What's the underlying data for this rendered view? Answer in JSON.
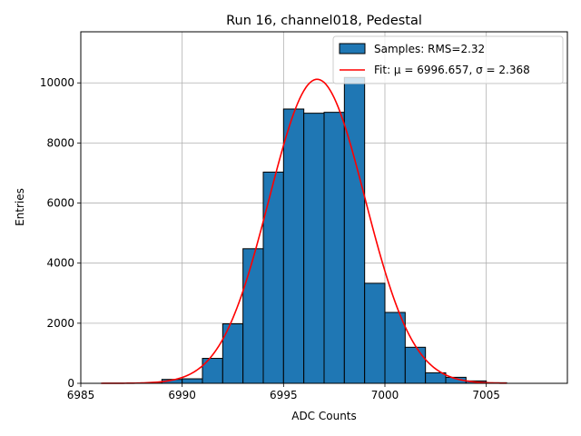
{
  "chart_data": {
    "type": "bar",
    "title": "Run 16, channel018, Pedestal",
    "xlabel": "ADC Counts",
    "ylabel": "Entries",
    "xlim": [
      6985,
      7009
    ],
    "ylim": [
      0,
      11700
    ],
    "xticks": [
      6985,
      6990,
      6995,
      7000,
      7005
    ],
    "yticks": [
      0,
      2000,
      4000,
      6000,
      8000,
      10000
    ],
    "grid": true,
    "legend_position": "top-right",
    "bin_width": 1,
    "bins": [
      {
        "x0": 6988,
        "count": 10
      },
      {
        "x0": 6989,
        "count": 130
      },
      {
        "x0": 6990,
        "count": 150
      },
      {
        "x0": 6991,
        "count": 830
      },
      {
        "x0": 6992,
        "count": 1980
      },
      {
        "x0": 6993,
        "count": 4480
      },
      {
        "x0": 6994,
        "count": 7030
      },
      {
        "x0": 6995,
        "count": 9130
      },
      {
        "x0": 6996,
        "count": 8990
      },
      {
        "x0": 6997,
        "count": 9020
      },
      {
        "x0": 6998,
        "count": 10180
      },
      {
        "x0": 6999,
        "count": 3330
      },
      {
        "x0": 7000,
        "count": 2360
      },
      {
        "x0": 7001,
        "count": 1200
      },
      {
        "x0": 7002,
        "count": 350
      },
      {
        "x0": 7003,
        "count": 200
      },
      {
        "x0": 7004,
        "count": 80
      },
      {
        "x0": 7005,
        "count": 20
      }
    ],
    "series": [
      {
        "name": "Samples: RMS=2.32",
        "kind": "histogram",
        "color": "#1f77b4",
        "edgecolor": "#000000"
      },
      {
        "name": "Fit: μ = 6996.657, σ = 2.368",
        "kind": "gaussian-fit",
        "color": "#ff0000",
        "mu": 6996.657,
        "sigma": 2.368,
        "amplitude": 10120,
        "x_range": [
          6986,
          7006
        ]
      }
    ]
  }
}
